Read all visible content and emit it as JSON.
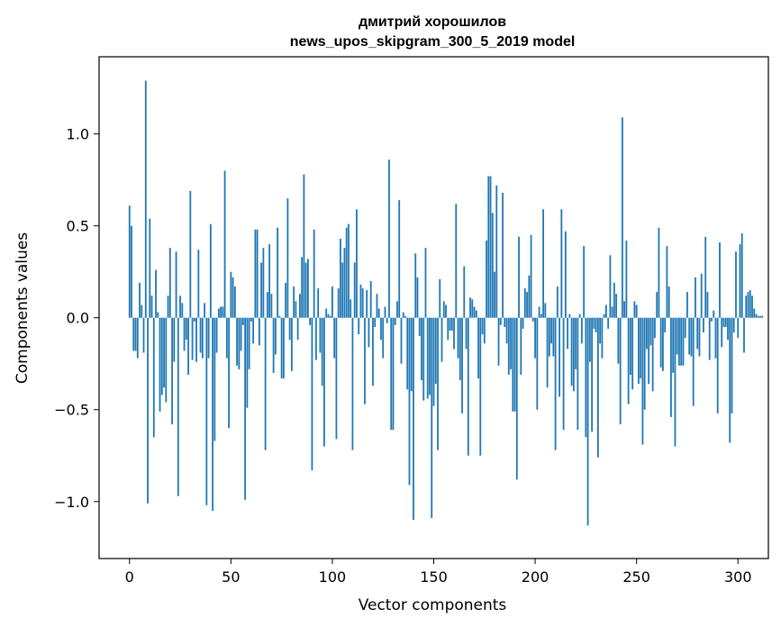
{
  "chart_data": {
    "type": "bar",
    "title": "дмитрий хорошилов",
    "subtitle": "news_upos_skipgram_300_5_2019 model",
    "xlabel": "Vector components",
    "ylabel": "Components values",
    "xlim": [
      -15,
      315
    ],
    "ylim": [
      -1.31,
      1.42
    ],
    "x_ticks": [
      0,
      50,
      100,
      150,
      200,
      250,
      300
    ],
    "x_tick_labels": [
      "0",
      "50",
      "100",
      "150",
      "200",
      "250",
      "300"
    ],
    "y_ticks": [
      -1.0,
      -0.5,
      0.0,
      0.5,
      1.0
    ],
    "y_tick_labels": [
      "−1.0",
      "−0.5",
      "0.0",
      "0.5",
      "1.0"
    ],
    "bar_color": "#1f77b4",
    "grid": false,
    "series": [
      {
        "values": [
          0.61,
          0.5,
          -0.18,
          -0.18,
          -0.22,
          0.19,
          0.07,
          -0.19,
          1.29,
          -1.01,
          0.54,
          0.12,
          -0.65,
          0.26,
          0.03,
          -0.51,
          -0.42,
          -0.38,
          -0.46,
          0.12,
          0.38,
          -0.58,
          -0.24,
          0.36,
          -0.97,
          0.12,
          0.08,
          -0.18,
          -0.12,
          -0.31,
          0.69,
          -0.23,
          -0.02,
          -0.24,
          0.37,
          -0.19,
          -0.22,
          0.08,
          -1.02,
          -0.22,
          0.51,
          -1.05,
          -0.67,
          -0.19,
          0.05,
          0.06,
          0.06,
          0.8,
          -0.22,
          -0.6,
          0.25,
          0.22,
          0.17,
          -0.26,
          -0.28,
          -0.18,
          -0.04,
          -0.99,
          -0.49,
          -0.28,
          -0.02,
          -0.14,
          0.48,
          0.48,
          -0.15,
          0.3,
          0.38,
          -0.72,
          0.14,
          0.4,
          0.13,
          -0.3,
          -0.2,
          0.49,
          0.01,
          -0.33,
          -0.33,
          0.19,
          0.65,
          -0.12,
          -0.29,
          0.17,
          0.09,
          -0.12,
          0.13,
          0.33,
          0.78,
          0.3,
          0.32,
          -0.04,
          -0.83,
          0.48,
          -0.23,
          0.16,
          -0.19,
          -0.37,
          -0.7,
          0.05,
          0.02,
          0.01,
          0.17,
          -0.22,
          -0.66,
          0.16,
          0.43,
          0.3,
          0.38,
          0.49,
          0.51,
          0.1,
          -0.72,
          0.3,
          0.59,
          -0.09,
          0.18,
          0.16,
          -0.47,
          0.15,
          -0.16,
          0.2,
          -0.37,
          -0.05,
          0.13,
          0.05,
          -0.12,
          -0.22,
          0.06,
          -0.03,
          0.86,
          -0.61,
          -0.61,
          -0.04,
          0.09,
          0.64,
          -0.25,
          0.03,
          0.01,
          -0.39,
          -0.91,
          -0.4,
          -1.1,
          0.35,
          0.22,
          -0.1,
          -0.34,
          -0.45,
          0.38,
          -0.44,
          -0.42,
          -1.09,
          -0.48,
          -0.36,
          -0.72,
          0.21,
          -0.24,
          0.09,
          0.07,
          -0.12,
          -0.07,
          -0.07,
          -0.17,
          0.62,
          -0.22,
          -0.34,
          -0.52,
          0.28,
          -0.17,
          -0.75,
          0.11,
          0.1,
          0.06,
          0.04,
          -0.33,
          -0.75,
          -0.09,
          -0.14,
          0.42,
          0.77,
          0.77,
          0.57,
          0.25,
          0.72,
          -0.26,
          -0.04,
          0.68,
          -0.05,
          -0.14,
          -0.31,
          -0.28,
          -0.51,
          -0.51,
          -0.88,
          0.44,
          -0.31,
          -0.06,
          0.16,
          0.14,
          0.23,
          0.45,
          -0.02,
          -0.22,
          -0.5,
          0.06,
          0.02,
          0.59,
          0.08,
          -0.38,
          -0.21,
          -0.14,
          -0.21,
          -0.72,
          0.17,
          -0.43,
          0.59,
          -0.61,
          0.47,
          -0.17,
          0.02,
          -0.37,
          -0.4,
          -0.28,
          -0.61,
          0.02,
          -0.14,
          0.39,
          -0.65,
          -1.13,
          -0.24,
          -0.62,
          -0.06,
          -0.08,
          -0.76,
          -0.14,
          -0.22,
          0.02,
          0.07,
          -0.06,
          0.34,
          0.06,
          0.19,
          0.13,
          -0.25,
          -0.58,
          1.09,
          0.09,
          0.42,
          -0.47,
          -0.31,
          -0.39,
          0.09,
          0.07,
          -0.36,
          -0.33,
          -0.69,
          -0.5,
          -0.17,
          -0.36,
          -0.15,
          -0.4,
          -0.11,
          0.14,
          0.49,
          -0.27,
          -0.29,
          -0.08,
          0.39,
          0.17,
          -0.54,
          -0.3,
          -0.7,
          -0.2,
          -0.26,
          -0.26,
          -0.26,
          -0.11,
          0.14,
          -0.2,
          -0.21,
          -0.48,
          0.22,
          -0.17,
          -0.21,
          0.24,
          -0.08,
          0.44,
          0.14,
          -0.23,
          -0.02,
          0.04,
          -0.22,
          -0.52,
          0.41,
          -0.16,
          -0.05,
          -0.05,
          -0.12,
          -0.68,
          -0.52,
          -0.08,
          0.36,
          -0.11,
          0.4,
          0.46,
          -0.19,
          0.12,
          0.14,
          0.15,
          0.12,
          0.05,
          0.02,
          0.01,
          0.01,
          0.01
        ]
      }
    ]
  }
}
